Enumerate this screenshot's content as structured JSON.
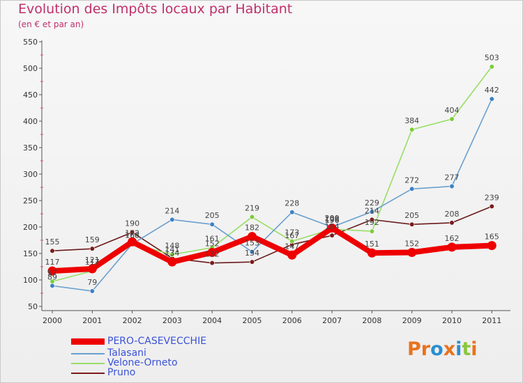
{
  "header": {
    "title": "Evolution des Impôts locaux par Habitant",
    "subtitle": "(en € et par an)"
  },
  "brand": {
    "text": "Proxiti",
    "letter_colors": [
      "#e8731e",
      "#e8731e",
      "#2a8fd0",
      "#e8731e",
      "#2a8fd0",
      "#8cc63f",
      "#e8731e"
    ]
  },
  "chart_data": {
    "type": "line",
    "title": "Evolution des Impôts locaux par Habitant",
    "subtitle": "(en € et par an)",
    "xlabel": "",
    "ylabel": "",
    "categories": [
      "2000",
      "2001",
      "2002",
      "2003",
      "2004",
      "2005",
      "2006",
      "2007",
      "2008",
      "2009",
      "2010",
      "2011"
    ],
    "ylim": [
      50,
      550
    ],
    "yticks": [
      50,
      100,
      150,
      200,
      250,
      300,
      350,
      400,
      450,
      500,
      550
    ],
    "grid": false,
    "legend_position": "bottom-left",
    "series": [
      {
        "name": "Pruno",
        "color": "#6b1a1a",
        "marker": "#7a1c1c",
        "values": [
          155,
          159,
          190,
          141,
          132,
          134,
          167,
          184,
          214,
          205,
          208,
          239
        ],
        "labels": [
          "155",
          "159",
          "190",
          "141",
          "132",
          "134",
          "167",
          "184",
          "214",
          "205",
          "208",
          "239"
        ]
      },
      {
        "name": "Velone-Orneto",
        "color": "#99dd66",
        "marker": "#7ccc3a",
        "values": [
          97,
          117,
          168,
          148,
          161,
          219,
          173,
          196,
          192,
          384,
          404,
          503
        ],
        "labels": [
          "97",
          "117",
          "168",
          "148",
          "161",
          "219",
          "173",
          "196",
          "192",
          "384",
          "404",
          "503"
        ]
      },
      {
        "name": "Talasani",
        "color": "#6a9fcf",
        "marker": "#3d82c4",
        "values": [
          89,
          79,
          168,
          214,
          205,
          153,
          228,
          200,
          229,
          272,
          277,
          442
        ],
        "labels": [
          "89",
          "79",
          "168",
          "214",
          "205",
          "153",
          "228",
          "200",
          "229",
          "272",
          "277",
          "442"
        ]
      },
      {
        "name": "PERO-CASEVECCHIE",
        "color": "#ee0000",
        "marker": "#ee0000",
        "values": [
          117,
          121,
          172,
          134,
          152,
          182,
          147,
          198,
          151,
          152,
          162,
          165
        ],
        "labels": [
          "117",
          "121",
          "172",
          "134",
          "152",
          "182",
          "147",
          "198",
          "151",
          "152",
          "162",
          "165"
        ]
      }
    ]
  },
  "legend": {
    "items": [
      {
        "label": "PERO-CASEVECCHIE",
        "color": "#ee0000",
        "thickness": 9
      },
      {
        "label": "Talasani",
        "color": "#6a9fcf",
        "thickness": 2
      },
      {
        "label": "Velone-Orneto",
        "color": "#99dd66",
        "thickness": 2
      },
      {
        "label": "Pruno",
        "color": "#7a1c1c",
        "thickness": 2
      }
    ]
  }
}
